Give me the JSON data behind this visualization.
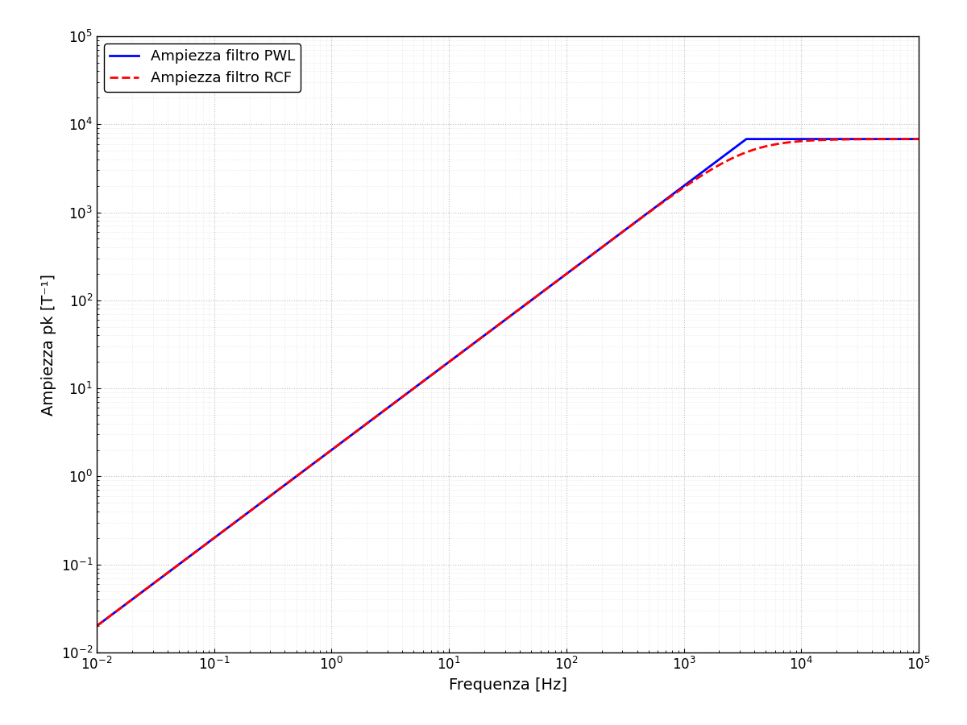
{
  "xlabel": "Frequenza [Hz]",
  "ylabel": "Ampiezza pk [T⁻¹]",
  "xlim": [
    0.01,
    100000.0
  ],
  "ylim": [
    0.01,
    100000.0
  ],
  "legend_PWL": "Ampiezza filtro PWL",
  "legend_RCF": "Ampiezza filtro RCF",
  "color_PWL": "#0000ff",
  "color_RCF": "#ff0000",
  "lw_PWL": 2.0,
  "lw_RCF": 2.0,
  "figsize": [
    12,
    9
  ],
  "dpi": 100,
  "val_high": 6800,
  "fc_pwl": 3400,
  "fc_rcf": 3400,
  "rcf_peak_f": 3000,
  "rcf_peak_scale": 0.85,
  "grid_color": "#000000",
  "grid_alpha": 0.25,
  "grid_linestyle": ":"
}
